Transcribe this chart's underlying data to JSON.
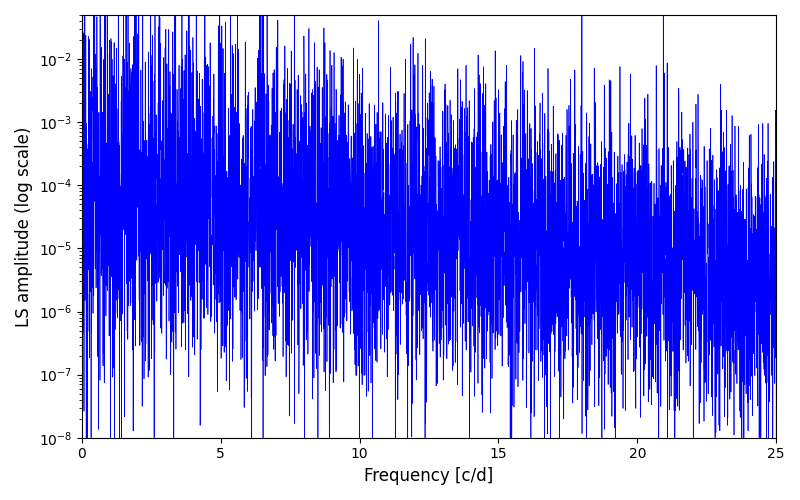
{
  "title": "",
  "xlabel": "Frequency [c/d]",
  "ylabel": "LS amplitude (log scale)",
  "xlim": [
    0,
    25
  ],
  "ylim": [
    1e-08,
    0.05
  ],
  "line_color": "#0000ff",
  "line_width": 0.5,
  "figsize": [
    8.0,
    5.0
  ],
  "dpi": 100,
  "n_points": 5000,
  "seed": 12345,
  "background_color": "#ffffff",
  "xticks": [
    0,
    5,
    10,
    15,
    20,
    25
  ],
  "freq_max": 25.0
}
